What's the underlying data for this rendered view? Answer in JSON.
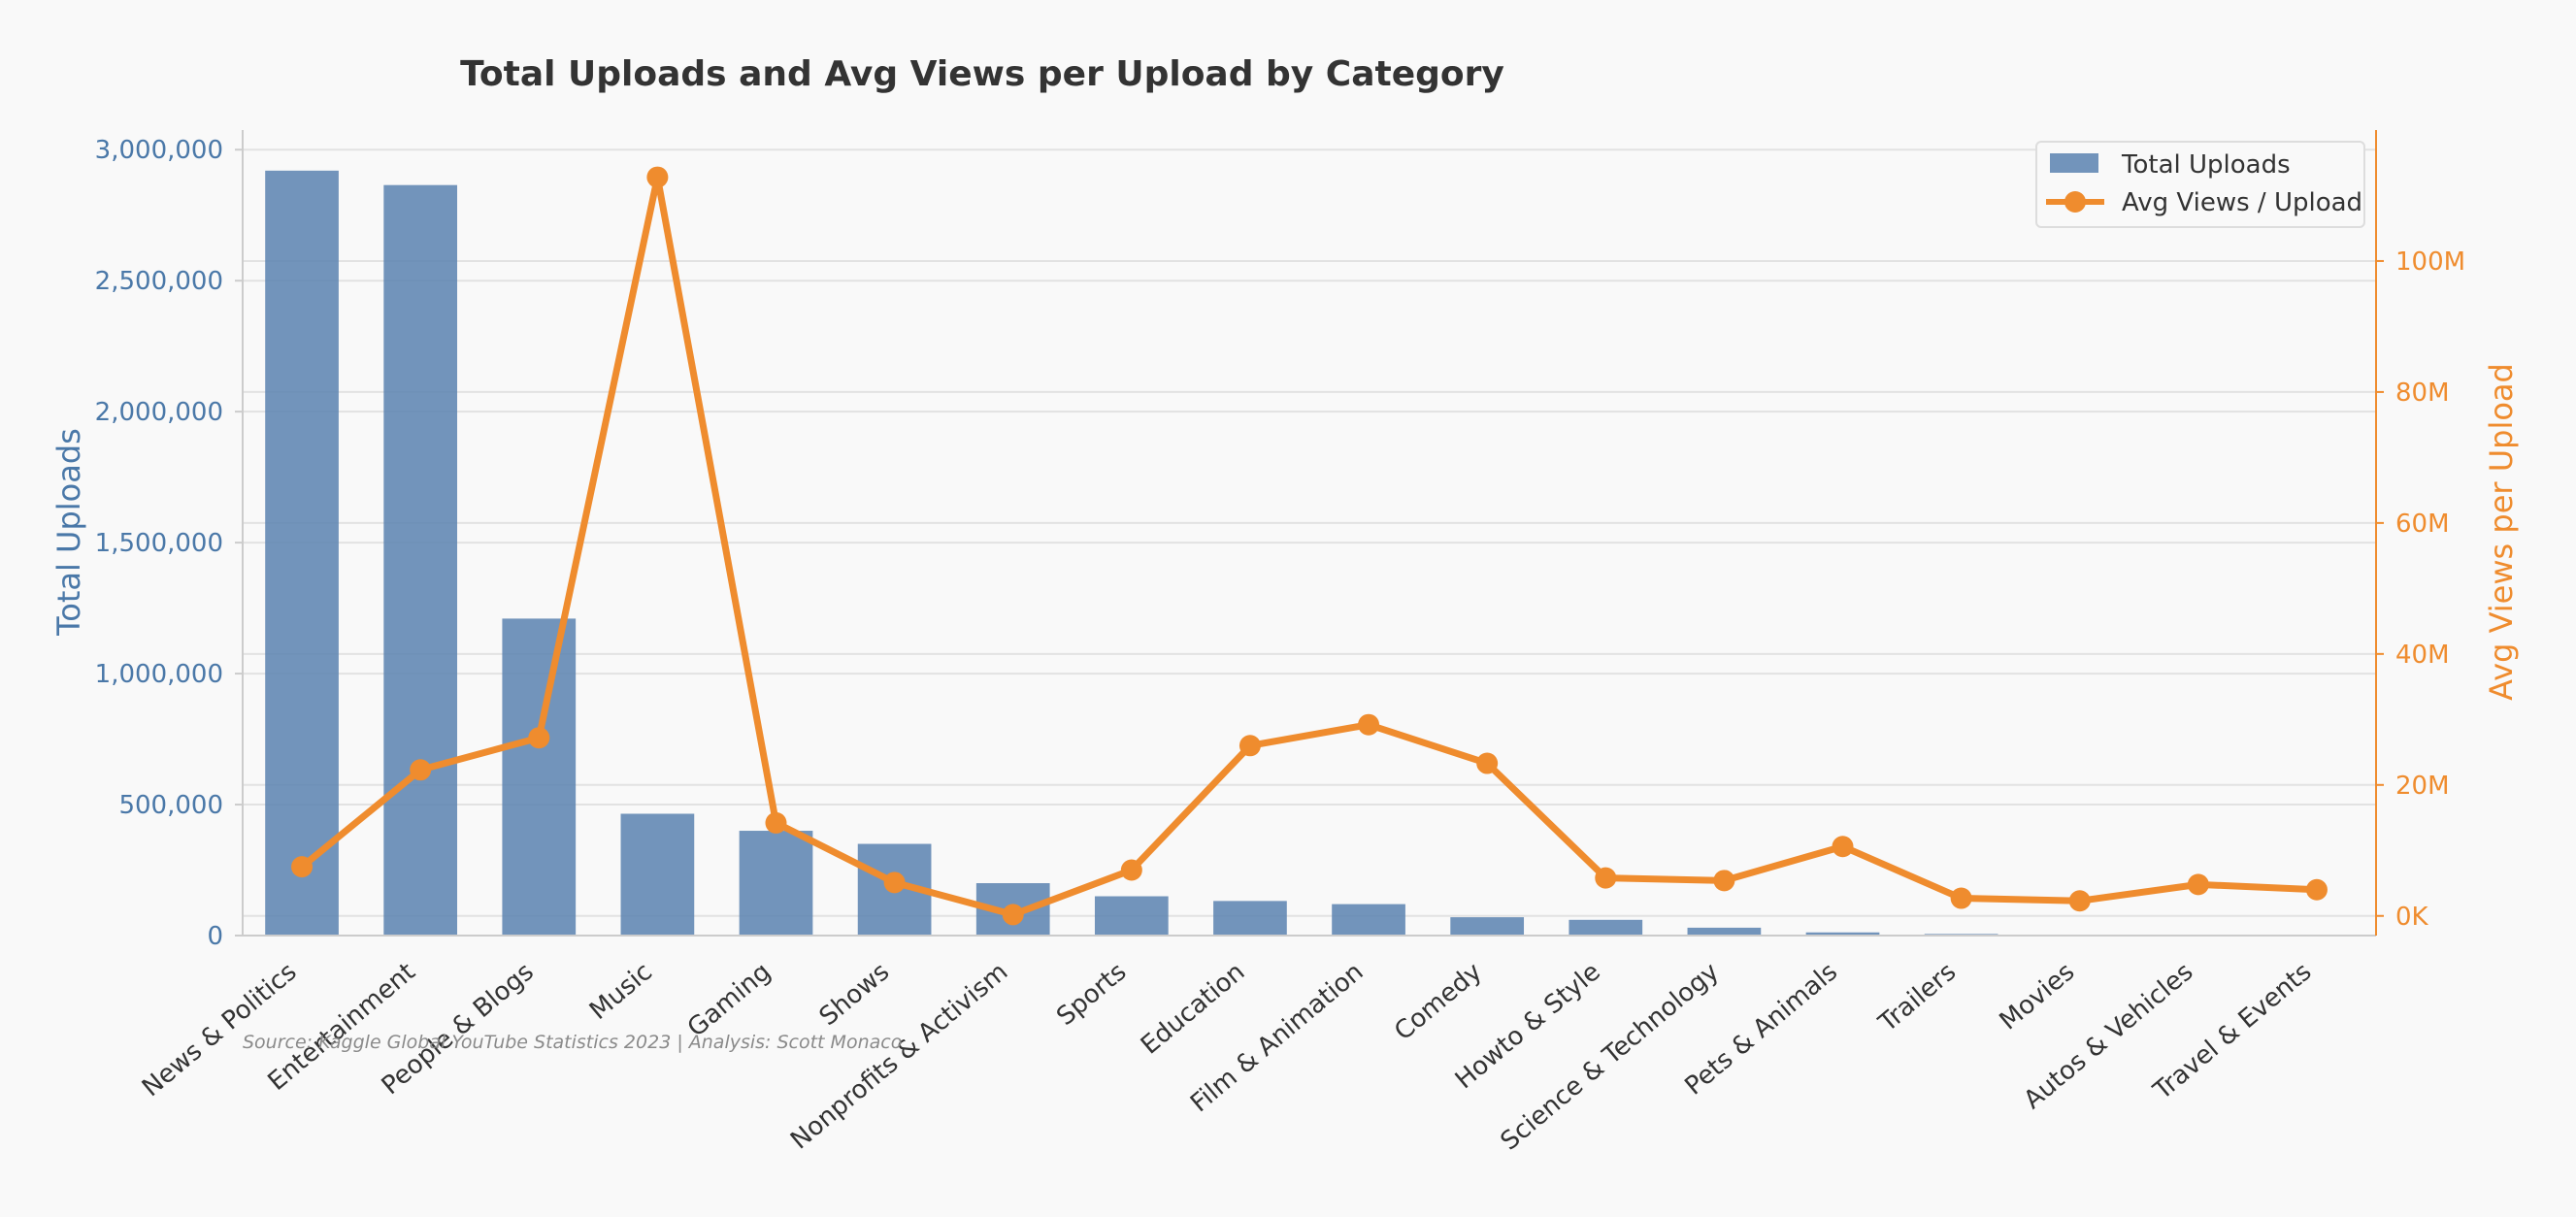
{
  "chart_data": {
    "type": "bar",
    "title": "Total Uploads and Avg Views per Upload by Category",
    "categories": [
      "News & Politics",
      "Entertainment",
      "People & Blogs",
      "Music",
      "Gaming",
      "Shows",
      "Nonprofits & Activism",
      "Sports",
      "Education",
      "Film & Animation",
      "Comedy",
      "Howto & Style",
      "Science & Technology",
      "Pets & Animals",
      "Trailers",
      "Movies",
      "Autos & Vehicles",
      "Travel & Events"
    ],
    "series": [
      {
        "name": "Total Uploads",
        "type": "bar",
        "axis": "left",
        "values": [
          2920000,
          2865000,
          1210000,
          465000,
          400000,
          350000,
          200000,
          150000,
          132000,
          120000,
          70000,
          60000,
          30000,
          12000,
          6000,
          2000,
          1000,
          500
        ]
      },
      {
        "name": "Avg Views / Upload",
        "type": "line",
        "axis": "right",
        "values": [
          7500000,
          22300000,
          27200000,
          112800000,
          14200000,
          5100000,
          200000,
          7000000,
          26000000,
          29200000,
          23300000,
          5800000,
          5400000,
          10600000,
          2700000,
          2300000,
          4800000,
          4000000
        ]
      }
    ],
    "ylabel": "Total Uploads",
    "ylabel_right": "Avg Views per Upload",
    "ylim": [
      0,
      3075000
    ],
    "ylim_right": [
      -3000000,
      120000000
    ],
    "yticks_left": [
      0,
      500000,
      1000000,
      1500000,
      2000000,
      2500000,
      3000000
    ],
    "yticks_left_labels": [
      "0",
      "500,000",
      "1,000,000",
      "1,500,000",
      "2,000,000",
      "2,500,000",
      "3,000,000"
    ],
    "yticks_right": [
      0,
      20000000,
      40000000,
      60000000,
      80000000,
      100000000
    ],
    "yticks_right_labels": [
      "0K",
      "20M",
      "40M",
      "60M",
      "80M",
      "100M"
    ],
    "grid": true,
    "legend": "top-right",
    "colors": {
      "bars": "#5a82b0",
      "line": "#ef8c2e",
      "left_axis": "#4a78a8",
      "right_axis": "#ef8c2e"
    }
  },
  "footer": {
    "source": "Source: Kaggle Global YouTube Statistics 2023 | Analysis: Scott Monaco"
  }
}
